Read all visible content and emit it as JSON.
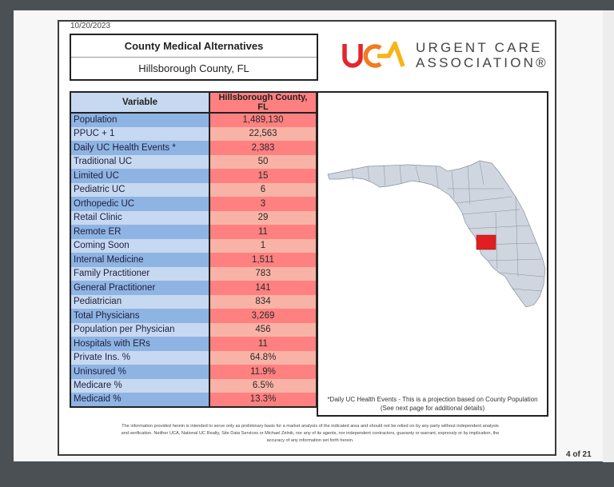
{
  "report": {
    "date": "10/20/2023",
    "title": "County Medical Alternatives",
    "subtitle": "Hillsborough County, FL"
  },
  "logo": {
    "mark_text": "UCA",
    "line1": "URGENT CARE",
    "line2": "ASSOCIATION®",
    "colors": {
      "u": "#e3262c",
      "c": "#f07c1f",
      "a": "#f7b418"
    }
  },
  "table": {
    "headers": [
      "Variable",
      "Hillsborough County, FL"
    ],
    "rows": [
      {
        "variable": "Population",
        "value": "1,489,130"
      },
      {
        "variable": "PPUC + 1",
        "value": "22,563"
      },
      {
        "variable": "Daily UC Health Events *",
        "value": "2,383"
      },
      {
        "variable": "Traditional UC",
        "value": "50"
      },
      {
        "variable": "Limited UC",
        "value": "15"
      },
      {
        "variable": "Pediatric UC",
        "value": "6"
      },
      {
        "variable": "Orthopedic UC",
        "value": "3"
      },
      {
        "variable": "Retail Clinic",
        "value": "29"
      },
      {
        "variable": "Remote ER",
        "value": "11"
      },
      {
        "variable": "Coming Soon",
        "value": "1"
      },
      {
        "variable": "Internal Medicine",
        "value": "1,511"
      },
      {
        "variable": "Family Practitioner",
        "value": "783"
      },
      {
        "variable": "General Practitioner",
        "value": "141"
      },
      {
        "variable": "Pediatrician",
        "value": "834"
      },
      {
        "variable": "Total Physicians",
        "value": "3,269"
      },
      {
        "variable": "Population per Physician",
        "value": "456"
      },
      {
        "variable": "Hospitals with ERs",
        "value": "11"
      },
      {
        "variable": "Private Ins. %",
        "value": "64.8%"
      },
      {
        "variable": "Uninsured %",
        "value": "11.9%"
      },
      {
        "variable": "Medicare %",
        "value": "6.5%"
      },
      {
        "variable": "Medicaid %",
        "value": "13.3%"
      }
    ]
  },
  "map": {
    "state": "Florida",
    "highlighted_county": "Hillsborough",
    "highlight_color": "#e02020",
    "footnote_line1": "*Daily UC Health Events - This is a projection based on County Population",
    "footnote_line2": "(See next page for additional details)"
  },
  "disclaimer": {
    "line1": "The information provided herein is intended to serve only as preliminary basis for a market analysis of the indicated area and should not be relied on by any party without independent analysis",
    "line2": "and verification. Neither UCA, National UC Realty, Site Data Services or Michael Zelnik, nor any of its agents, nor independent contractors, guaranty or warrant, expressly or by implication, the",
    "line3": "accuracy of any information set forth herein."
  },
  "pagination": {
    "label": "4 of 21"
  }
}
